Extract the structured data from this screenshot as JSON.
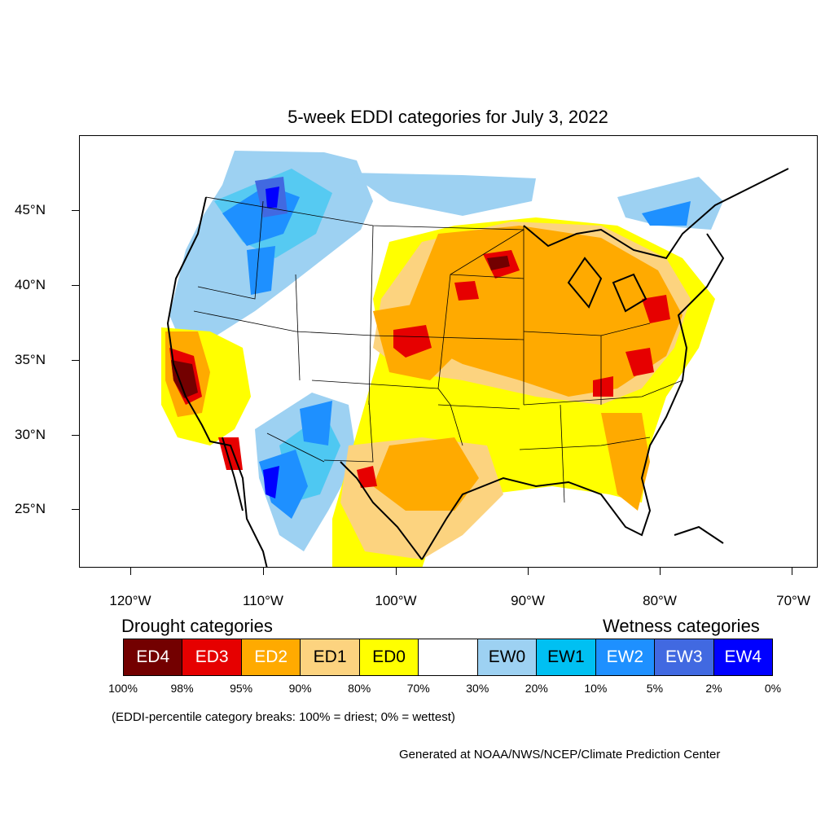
{
  "title": "5-week EDDI categories for July 3, 2022",
  "lat_labels": [
    "45°N",
    "40°N",
    "35°N",
    "30°N",
    "25°N"
  ],
  "lon_labels": [
    "120°W",
    "110°W",
    "100°W",
    "90°W",
    "80°W",
    "70°W"
  ],
  "drought_heading": "Drought categories",
  "wetness_heading": "Wetness categories",
  "legend": [
    {
      "label": "ED4",
      "color": "#730000",
      "text_color": "#ffffff"
    },
    {
      "label": "ED3",
      "color": "#e60000",
      "text_color": "#ffffff"
    },
    {
      "label": "ED2",
      "color": "#ffaa00",
      "text_color": "#ffffff"
    },
    {
      "label": "ED1",
      "color": "#fcd37f",
      "text_color": "#000000"
    },
    {
      "label": "ED0",
      "color": "#ffff00",
      "text_color": "#000000"
    },
    {
      "label": "",
      "color": "#ffffff",
      "text_color": "#000000"
    },
    {
      "label": "EW0",
      "color": "#9dd1f2",
      "text_color": "#000000"
    },
    {
      "label": "EW1",
      "color": "#00c0f2",
      "text_color": "#000000"
    },
    {
      "label": "EW2",
      "color": "#1e90ff",
      "text_color": "#ffffff"
    },
    {
      "label": "EW3",
      "color": "#4169e1",
      "text_color": "#ffffff"
    },
    {
      "label": "EW4",
      "color": "#0000ff",
      "text_color": "#ffffff"
    }
  ],
  "percent_breaks": [
    "100%",
    "98%",
    "95%",
    "90%",
    "80%",
    "70%",
    "30%",
    "20%",
    "10%",
    "5%",
    "2%",
    "0%"
  ],
  "note": "(EDDI-percentile category breaks: 100% = driest; 0% = wettest)",
  "credit": "Generated at NOAA/NWS/NCEP/Climate Prediction Center"
}
